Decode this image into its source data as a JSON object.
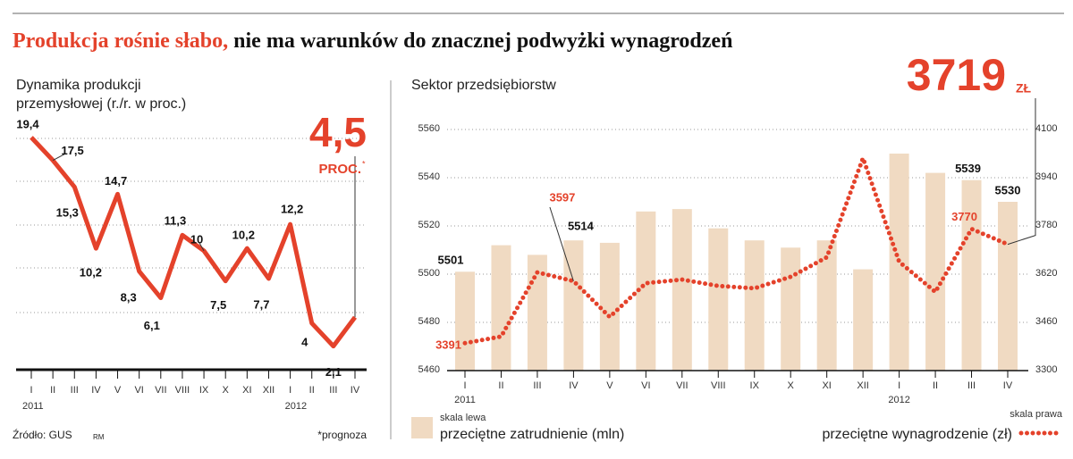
{
  "title": [
    "Produkcja rośnie słabo,",
    "nie ma warunków do znacznej podwyżki wynagrodzeń"
  ],
  "source": "Źródło: GUS",
  "author": "RM",
  "chart_data": [
    {
      "type": "line",
      "title": [
        "Dynamika produkcji",
        "przemysłowej (r./r. w proc.)"
      ],
      "categories": [
        "I",
        "II",
        "III",
        "IV",
        "V",
        "VI",
        "VII",
        "VIII",
        "IX",
        "X",
        "XI",
        "XII",
        "I",
        "II",
        "III",
        "IV"
      ],
      "years": [
        "2011",
        "2012"
      ],
      "values": [
        19.4,
        17.5,
        15.3,
        10.2,
        14.7,
        8.3,
        6.1,
        11.3,
        10,
        7.5,
        10.2,
        7.7,
        12.2,
        4,
        2.1,
        4.5
      ],
      "value_labels": [
        "19,4",
        "17,5",
        "15,3",
        "10,2",
        "14,7",
        "8,3",
        "6,1",
        "11,3",
        "10",
        "7,5",
        "10,2",
        "7,7",
        "12,2",
        "4",
        "2,1",
        "4,5"
      ],
      "unit": "PROC.",
      "footnote_mark": "*",
      "footnote": "*prognoza",
      "color": "#e4422b",
      "ylim": [
        0,
        20.5
      ]
    },
    {
      "type": "bar_line",
      "title": "Sektor przedsiębiorstw",
      "categories": [
        "I",
        "II",
        "III",
        "IV",
        "V",
        "VI",
        "VII",
        "VIII",
        "IX",
        "X",
        "XI",
        "XII",
        "I",
        "II",
        "III",
        "IV"
      ],
      "years": [
        "2011",
        "2012"
      ],
      "series": [
        {
          "name": "przeciętne zatrudnienie (mln)",
          "scale": "skala lewa",
          "color": "#f0dac2",
          "values": [
            5501,
            5512,
            5508,
            5514,
            5513,
            5526,
            5527,
            5519,
            5514,
            5511,
            5514,
            5502,
            5550,
            5542,
            5539,
            5530
          ]
        },
        {
          "name": "przeciętne wynagrodzenie (zł)",
          "scale": "skala prawa",
          "color": "#e4422b",
          "axis": "y2",
          "values": [
            3391,
            3413,
            3626,
            3597,
            3478,
            3590,
            3602,
            3581,
            3573,
            3611,
            3676,
            4005,
            3661,
            3561,
            3770,
            3719
          ]
        }
      ],
      "unit": "ZŁ",
      "ylim": [
        5460,
        5560
      ],
      "yticks": [
        5460,
        5480,
        5500,
        5520,
        5540,
        5560
      ],
      "y2lim": [
        3300,
        4100
      ],
      "y2ticks": [
        3300,
        3460,
        3620,
        3780,
        3940,
        4100
      ],
      "grid": true
    }
  ]
}
